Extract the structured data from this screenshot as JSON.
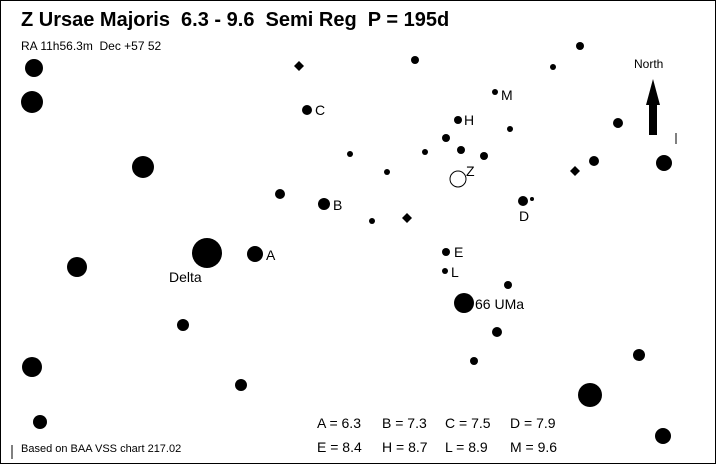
{
  "header": {
    "title": "Z Ursae Majoris  6.3 - 9.6  Semi Reg  P = 195d",
    "coords": "RA 11h56.3m  Dec +57 52"
  },
  "north": {
    "label": "North"
  },
  "labels": {
    "C": "C",
    "M": "M",
    "H": "H",
    "Z": "Z",
    "B": "B",
    "D": "D",
    "A": "A",
    "Delta": "Delta",
    "E": "E",
    "L": "L",
    "UMa66": "66 UMa"
  },
  "magnitudes": {
    "A": "A = 6.3",
    "B": "B = 7.3",
    "C": "C = 7.5",
    "D": "D = 7.9",
    "E": "E = 8.4",
    "H": "H = 8.7",
    "L": "L = 8.9",
    "M": "M = 9.6"
  },
  "credit": "Based on BAA VSS chart 217.02"
}
